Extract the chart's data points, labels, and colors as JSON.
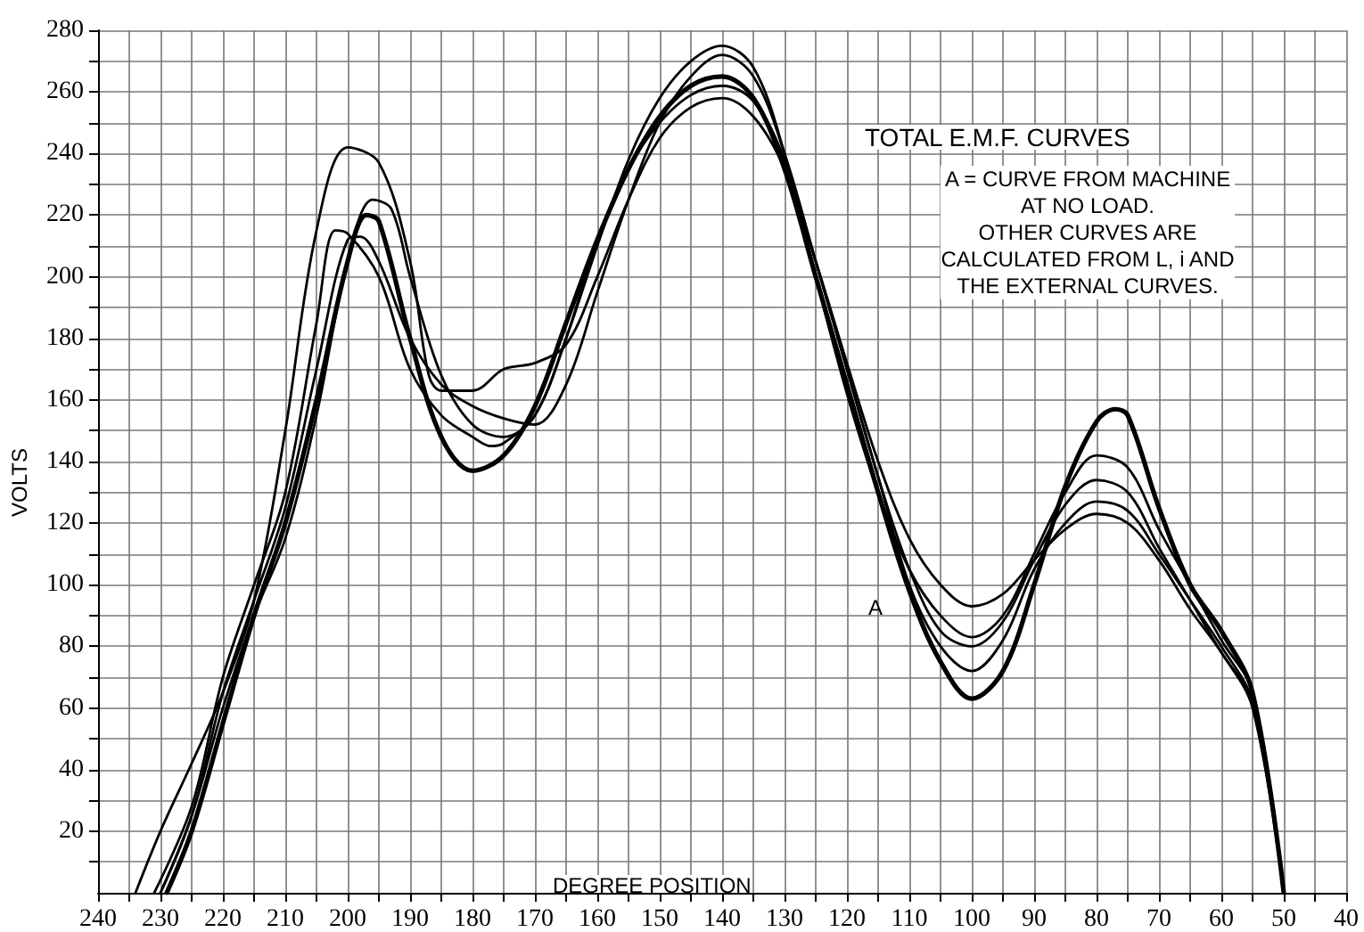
{
  "chart_data": {
    "type": "line",
    "title": "TOTAL E.M.F. CURVES",
    "xlabel": "DEGREE POSITION",
    "ylabel": "VOLTS",
    "annotations": [
      "A = CURVE FROM MACHINE\nAT NO LOAD.\nOTHER CURVES ARE\nCALCULATED FROM L, i AND\nTHE EXTERNAL CURVES.",
      "A"
    ],
    "xlim": [
      240,
      40
    ],
    "xticks": [
      240,
      {
        "value": 235,
        "label": null
      },
      230,
      {
        "value": 225,
        "label": null
      },
      220,
      {
        "value": 215,
        "label": null
      },
      210,
      {
        "value": 205,
        "label": null
      },
      200,
      {
        "value": 195,
        "label": null
      },
      190,
      {
        "value": 185,
        "label": null
      },
      180,
      {
        "value": 175,
        "label": null
      },
      170,
      {
        "value": 165,
        "label": null
      },
      160,
      {
        "value": 155,
        "label": null
      },
      150,
      {
        "value": 145,
        "label": null
      },
      140,
      {
        "value": 135,
        "label": null
      },
      130,
      {
        "value": 125,
        "label": null
      },
      120,
      {
        "value": 115,
        "label": null
      },
      110,
      {
        "value": 105,
        "label": null
      },
      100,
      {
        "value": 95,
        "label": null
      },
      90,
      {
        "value": 85,
        "label": null
      },
      80,
      {
        "value": 75,
        "label": null
      },
      70,
      {
        "value": 65,
        "label": null
      },
      60,
      {
        "value": 55,
        "label": null
      },
      50,
      {
        "value": 45,
        "label": null
      },
      40
    ],
    "ylim": [
      0,
      280
    ],
    "yticks": [
      {
        "value": 10,
        "label": null
      },
      20,
      {
        "value": 30,
        "label": null
      },
      40,
      {
        "value": 50,
        "label": null
      },
      60,
      {
        "value": 70,
        "label": null
      },
      80,
      {
        "value": 90,
        "label": null
      },
      100,
      {
        "value": 110,
        "label": null
      },
      120,
      {
        "value": 130,
        "label": null
      },
      140,
      {
        "value": 150,
        "label": null
      },
      160,
      {
        "value": 170,
        "label": null
      },
      180,
      {
        "value": 190,
        "label": null
      },
      200,
      {
        "value": 210,
        "label": null
      },
      220,
      {
        "value": 230,
        "label": null
      },
      240,
      {
        "value": 250,
        "label": null
      },
      260,
      {
        "value": 270,
        "label": null
      },
      280
    ],
    "grid": true,
    "marker": "none",
    "line_style": "solid",
    "series": [
      {
        "color": "#000000",
        "x": [
          229,
          225,
          220,
          215,
          210,
          205,
          200,
          197,
          195,
          190,
          185,
          180,
          175,
          170,
          165,
          160,
          155,
          150,
          145,
          140,
          135,
          130,
          125,
          120,
          115,
          110,
          105,
          100,
          95,
          90,
          85,
          80,
          77,
          75,
          70,
          65,
          60,
          55,
          50
        ],
        "values": [
          0,
          20,
          55,
          90,
          120,
          160,
          205,
          220,
          218,
          180,
          148,
          137,
          142,
          158,
          185,
          212,
          235,
          252,
          262,
          265,
          258,
          235,
          200,
          165,
          130,
          98,
          75,
          63,
          72,
          100,
          132,
          153,
          157,
          155,
          125,
          100,
          85,
          65,
          0
        ]
      },
      {
        "color": "#000000",
        "x": [
          234,
          230,
          225,
          220,
          215,
          210,
          205,
          200,
          195,
          190,
          187,
          185,
          180,
          175,
          170,
          165,
          160,
          155,
          150,
          145,
          140,
          135,
          130,
          125,
          120,
          115,
          110,
          105,
          100,
          95,
          90,
          85,
          80,
          75,
          70,
          65,
          60,
          55,
          50
        ],
        "values": [
          0,
          20,
          42,
          65,
          95,
          150,
          215,
          242,
          237,
          205,
          168,
          163,
          163,
          170,
          172,
          178,
          200,
          225,
          245,
          255,
          258,
          252,
          235,
          205,
          172,
          140,
          115,
          100,
          93,
          97,
          108,
          118,
          123,
          120,
          108,
          92,
          78,
          60,
          0
        ]
      },
      {
        "color": "#000000",
        "x": [
          230,
          225,
          220,
          215,
          210,
          205,
          200,
          196,
          193,
          190,
          185,
          180,
          175,
          170,
          165,
          160,
          155,
          150,
          145,
          140,
          135,
          130,
          125,
          120,
          115,
          110,
          105,
          100,
          95,
          90,
          85,
          80,
          75,
          70,
          65,
          60,
          55,
          50
        ],
        "values": [
          0,
          25,
          60,
          90,
          115,
          155,
          205,
          225,
          222,
          200,
          168,
          152,
          148,
          155,
          180,
          210,
          238,
          258,
          270,
          275,
          268,
          240,
          200,
          162,
          130,
          105,
          90,
          83,
          90,
          110,
          130,
          142,
          138,
          118,
          100,
          82,
          65,
          0
        ]
      },
      {
        "color": "#000000",
        "x": [
          231,
          225,
          220,
          215,
          210,
          205,
          202,
          200,
          195,
          190,
          185,
          180,
          177,
          175,
          170,
          165,
          160,
          155,
          150,
          145,
          140,
          135,
          130,
          125,
          120,
          115,
          110,
          105,
          100,
          95,
          90,
          85,
          80,
          75,
          70,
          65,
          60,
          55,
          50
        ],
        "values": [
          0,
          28,
          70,
          100,
          130,
          185,
          215,
          214,
          200,
          170,
          155,
          148,
          145,
          146,
          155,
          180,
          212,
          235,
          250,
          259,
          262,
          257,
          238,
          205,
          170,
          135,
          105,
          85,
          80,
          88,
          108,
          126,
          134,
          130,
          112,
          95,
          78,
          62,
          0
        ]
      },
      {
        "color": "#000000",
        "x": [
          230,
          225,
          220,
          215,
          210,
          205,
          200,
          198,
          195,
          190,
          185,
          180,
          175,
          170,
          165,
          160,
          155,
          150,
          145,
          140,
          135,
          130,
          125,
          120,
          115,
          110,
          105,
          100,
          95,
          90,
          85,
          80,
          75,
          70,
          65,
          60,
          55,
          50
        ],
        "values": [
          0,
          25,
          65,
          95,
          125,
          170,
          212,
          213,
          205,
          180,
          165,
          158,
          154,
          152,
          165,
          195,
          225,
          250,
          265,
          272,
          265,
          240,
          205,
          170,
          135,
          100,
          80,
          72,
          82,
          105,
          120,
          127,
          124,
          110,
          95,
          80,
          62,
          0
        ]
      }
    ]
  }
}
